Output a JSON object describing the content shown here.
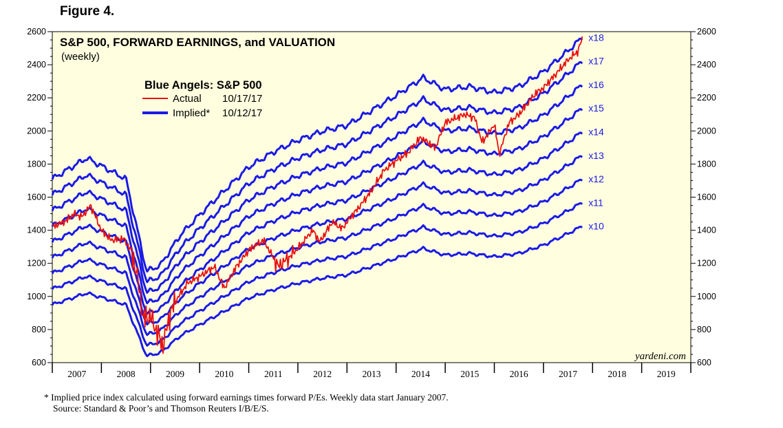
{
  "figure_label": "Figure 4.",
  "colors": {
    "plot_bg": "#FFFFE0",
    "implied": "#1A1AE6",
    "actual": "#E81010",
    "axis": "#000000"
  },
  "chart_data": {
    "type": "line",
    "title": "S&P 500, FORWARD EARNINGS, and VALUATION",
    "subtitle": "(weekly)",
    "legend": {
      "title": "Blue Angels: S&P 500",
      "entries": [
        {
          "name": "Actual",
          "date": "10/17/17",
          "color": "#E81010"
        },
        {
          "name": "Implied*",
          "date": "10/12/17",
          "color": "#1A1AE6"
        }
      ],
      "placement": "top-left"
    },
    "y_ticks": [
      "600",
      "800",
      "1000",
      "1200",
      "1400",
      "1600",
      "1800",
      "2000",
      "2200",
      "2400",
      "2600"
    ],
    "x_ticks": [
      "2007",
      "2008",
      "2009",
      "2010",
      "2011",
      "2012",
      "2013",
      "2014",
      "2015",
      "2016",
      "2017",
      "2018",
      "2019"
    ],
    "ylim": [
      600,
      2600
    ],
    "xlim": [
      2007.0,
      2020.0
    ],
    "watermark": "yardeni.com",
    "forward_earnings": {
      "x": [
        2007.0,
        2007.7,
        2008.5,
        2008.92,
        2009.2,
        2009.6,
        2010.0,
        2010.5,
        2011.0,
        2011.5,
        2012.0,
        2012.5,
        2013.0,
        2013.5,
        2014.0,
        2014.55,
        2015.0,
        2015.5,
        2015.75,
        2016.0,
        2016.5,
        2017.0,
        2017.5,
        2017.79
      ],
      "values": [
        95,
        102,
        95,
        64,
        66,
        76,
        83,
        91,
        99,
        104,
        108,
        111,
        113,
        118,
        123,
        129,
        125,
        126,
        125,
        124,
        126,
        131,
        138,
        142.5
      ]
    },
    "series": [
      {
        "name": "x18",
        "multiple": 18
      },
      {
        "name": "x17",
        "multiple": 17
      },
      {
        "name": "x16",
        "multiple": 16
      },
      {
        "name": "x15",
        "multiple": 15
      },
      {
        "name": "x14",
        "multiple": 14
      },
      {
        "name": "x13",
        "multiple": 13
      },
      {
        "name": "x12",
        "multiple": 12
      },
      {
        "name": "x11",
        "multiple": 11
      },
      {
        "name": "x10",
        "multiple": 10
      }
    ],
    "actual": {
      "name": "Actual",
      "x": [
        2007.0,
        2007.3,
        2007.45,
        2007.6,
        2007.78,
        2008.0,
        2008.2,
        2008.45,
        2008.6,
        2008.72,
        2008.85,
        2009.0,
        2009.18,
        2009.25,
        2009.4,
        2009.55,
        2009.75,
        2010.0,
        2010.3,
        2010.5,
        2010.75,
        2011.0,
        2011.3,
        2011.6,
        2011.8,
        2012.0,
        2012.3,
        2012.45,
        2012.7,
        2012.9,
        2013.0,
        2013.3,
        2013.5,
        2013.75,
        2014.0,
        2014.25,
        2014.5,
        2014.8,
        2015.0,
        2015.4,
        2015.6,
        2015.75,
        2016.0,
        2016.1,
        2016.3,
        2016.5,
        2016.85,
        2017.0,
        2017.3,
        2017.5,
        2017.7,
        2017.79
      ],
      "values": [
        1420,
        1460,
        1500,
        1480,
        1550,
        1400,
        1340,
        1350,
        1280,
        1140,
        870,
        880,
        750,
        700,
        900,
        990,
        1080,
        1120,
        1180,
        1050,
        1180,
        1280,
        1340,
        1180,
        1230,
        1290,
        1400,
        1330,
        1450,
        1410,
        1450,
        1560,
        1640,
        1760,
        1820,
        1870,
        1960,
        1900,
        2050,
        2100,
        2080,
        1930,
        2040,
        1860,
        2050,
        2100,
        2230,
        2260,
        2360,
        2430,
        2480,
        2560
      ]
    }
  },
  "footnote": {
    "line1": "*   Implied price index calculated using forward earnings times forward P/Es. Weekly data start January 2007.",
    "line2": "Source: Standard & Poor’s and Thomson Reuters I/B/E/S."
  }
}
